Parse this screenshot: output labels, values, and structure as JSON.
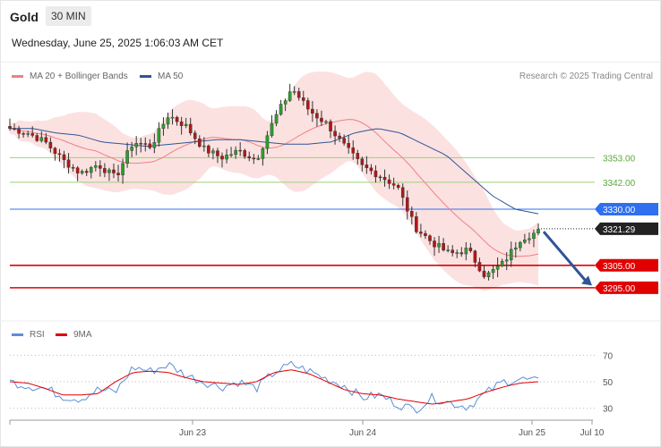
{
  "header": {
    "symbol": "Gold",
    "timeframe": "30 MIN",
    "timestamp": "Wednesday, June 25, 2025 1:06:03 AM CET",
    "credit": "Research © 2025 Trading Central"
  },
  "legend": {
    "main": [
      {
        "label": "MA 20 + Bollinger Bands",
        "color": "#f08080"
      },
      {
        "label": "MA 50",
        "color": "#2f5597"
      }
    ],
    "rsi": [
      {
        "label": "RSI",
        "color": "#5b8dd9"
      },
      {
        "label": "9MA",
        "color": "#e00000"
      }
    ]
  },
  "colors": {
    "up": "#2e9e2e",
    "down": "#b01818",
    "resistance": "#9bd17a",
    "pivot": "#2f6ff0",
    "support": "#e00000",
    "current": "#222222",
    "arrow": "#2f5597"
  },
  "chart_data": {
    "type": "candlestick",
    "price_range": [
      3283,
      3385
    ],
    "levels": [
      {
        "name": "resistance-2",
        "value": 3353.0,
        "label": "3353.00",
        "kind": "resistance"
      },
      {
        "name": "resistance-1",
        "value": 3342.0,
        "label": "3342.00",
        "kind": "resistance"
      },
      {
        "name": "pivot",
        "value": 3330.0,
        "label": "3330.00",
        "kind": "pivot"
      },
      {
        "name": "current",
        "value": 3321.29,
        "label": "3321.29",
        "kind": "current"
      },
      {
        "name": "support-1",
        "value": 3305.0,
        "label": "3305.00",
        "kind": "support"
      },
      {
        "name": "support-2",
        "value": 3295.0,
        "label": "3295.00",
        "kind": "support"
      }
    ],
    "forecast_arrow": {
      "from": 3320,
      "to": 3296
    },
    "close_waypoints": [
      3366,
      3364,
      3360,
      3352,
      3346,
      3350,
      3344,
      3360,
      3358,
      3372,
      3367,
      3357,
      3353,
      3356,
      3352,
      3370,
      3384,
      3374,
      3368,
      3358,
      3349,
      3345,
      3340,
      3322,
      3315,
      3310,
      3312,
      3300,
      3306,
      3317,
      3320
    ],
    "ma50_waypoints": [
      3366,
      3366,
      3364,
      3363,
      3360,
      3359,
      3358,
      3359,
      3360,
      3361,
      3361,
      3360,
      3359,
      3359,
      3360,
      3364,
      3366,
      3364,
      3359,
      3354,
      3345,
      3336,
      3330,
      3328
    ],
    "rsi": {
      "ticks": [
        70,
        50,
        30
      ],
      "range": [
        25,
        75
      ],
      "rsi_waypoints": [
        50,
        47,
        45,
        39,
        37,
        44,
        42,
        61,
        58,
        63,
        55,
        50,
        46,
        50,
        45,
        57,
        63,
        58,
        52,
        47,
        38,
        40,
        33,
        29,
        38,
        34,
        31,
        41,
        50,
        52,
        50
      ],
      "ma_waypoints": [
        50,
        49,
        45,
        40,
        40,
        41,
        50,
        57,
        58,
        57,
        53,
        50,
        49,
        48,
        50,
        57,
        59,
        56,
        50,
        44,
        41,
        40,
        37,
        35,
        33,
        35,
        37,
        42,
        46,
        49,
        50
      ]
    },
    "x_ticks": [
      "Jun 23",
      "Jun 24",
      "Jun 25",
      "Jul 10"
    ]
  }
}
